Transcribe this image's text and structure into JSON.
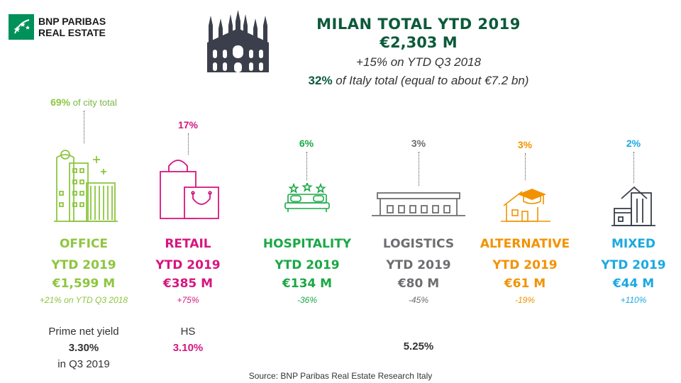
{
  "brand": {
    "line1": "BNP PARIBAS",
    "line2": "REAL ESTATE",
    "color": "#00915a"
  },
  "header": {
    "title": "MILAN TOTAL YTD 2019",
    "total": "€2,303 M",
    "change": "+15% on YTD Q3 2018",
    "share_value": "32%",
    "share_text": " of Italy total (equal to about €7.2 bn)",
    "icon": "cathedral-icon"
  },
  "segments": [
    {
      "share": "69%",
      "share_note": " of city total",
      "name": "OFFICE",
      "ytd": "YTD 2019",
      "value": "€1,599 M",
      "change": "+21% on YTD Q3 2018",
      "color": "#8dc63f",
      "icon": "office-building-icon",
      "yield_label": "Prime net yield",
      "yield_value": "3.30%",
      "yield_period": "in Q3 2019"
    },
    {
      "share": "17%",
      "name": "RETAIL",
      "ytd": "YTD 2019",
      "value": "€385 M",
      "change": "+75%",
      "color": "#d6167f",
      "icon": "shopping-bags-icon",
      "yield_label": "HS",
      "yield_value": "3.10%"
    },
    {
      "share": "6%",
      "name": "HOSPITALITY",
      "ytd": "YTD 2019",
      "value": "€134 M",
      "change": "-36%",
      "color": "#1aa846",
      "icon": "hotel-bed-icon"
    },
    {
      "share": "3%",
      "name": "LOGISTICS",
      "ytd": "YTD 2019",
      "value": "€80 M",
      "change": "-45%",
      "color": "#6d6e71",
      "icon": "warehouse-icon",
      "yield_value": "5.25%"
    },
    {
      "share": "3%",
      "name": "ALTERNATIVE",
      "ytd": "YTD 2019",
      "value": "€61 M",
      "change": "-19%",
      "color": "#f39200",
      "icon": "graduation-house-icon"
    },
    {
      "share": "2%",
      "name": "MIXED",
      "ytd": "YTD 2019",
      "value": "€44 M",
      "change": "+110%",
      "color": "#1ba9e1",
      "icon": "mixed-buildings-icon"
    }
  ],
  "source": "Source: BNP Paribas Real Estate Research Italy"
}
